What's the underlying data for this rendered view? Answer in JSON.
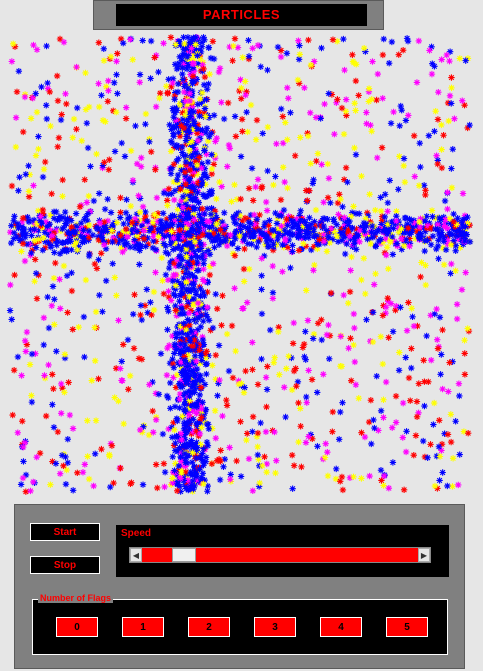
{
  "title": "PARTICLES",
  "controls": {
    "start_label": "Start",
    "stop_label": "Stop",
    "speed_label": "Speed",
    "speed_level": 0.12,
    "flags_label": "Number of Flags",
    "flag_buttons": [
      "0",
      "1",
      "2",
      "3",
      "4",
      "5"
    ]
  },
  "particles": {
    "colors": [
      "#0000ff",
      "#ff0000",
      "#ffff00",
      "#ff00ff"
    ],
    "glyph": "asterisk"
  }
}
